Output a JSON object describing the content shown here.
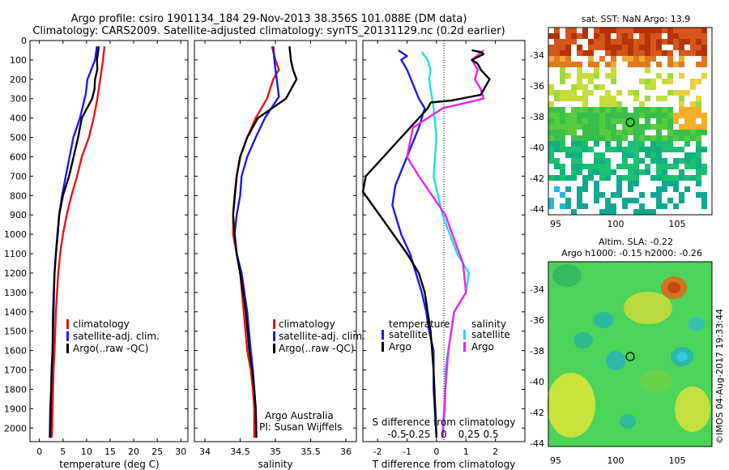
{
  "title_line1": "Argo profile: csiro 1901134_184 29-Nov-2013 38.356S 101.088E (DM data)",
  "title_line2": "Climatology: CARS2009. Satellite-adjusted climatology: synTS_20131129.nc (0.2d earlier)",
  "chart_data": [
    {
      "type": "line",
      "xlabel": "temperature (deg C)",
      "xlim": [
        -2,
        31.5
      ],
      "xticks": [
        0,
        5,
        10,
        15,
        20,
        25,
        30
      ],
      "ylim": [
        0,
        2070
      ],
      "yticks": [
        0,
        100,
        200,
        300,
        400,
        500,
        600,
        700,
        800,
        900,
        1000,
        1100,
        1200,
        1300,
        1400,
        1500,
        1600,
        1700,
        1800,
        1900,
        2000
      ],
      "legend": [
        "climatology",
        "satellite-adj. clim.",
        "Argo(..raw -QC)"
      ],
      "series": [
        {
          "name": "climatology",
          "color": "#ee1111",
          "x": [
            13.8,
            13.5,
            13.2,
            12.9,
            12.3,
            11.5,
            10.5,
            9.0,
            8.0,
            6.8,
            5.8,
            5.0,
            4.4,
            4.0,
            3.5,
            3.2,
            3.0,
            2.9,
            2.8,
            2.7,
            2.6
          ],
          "y": [
            30,
            100,
            150,
            200,
            300,
            400,
            500,
            600,
            700,
            800,
            900,
            1000,
            1100,
            1200,
            1400,
            1600,
            1700,
            1800,
            1900,
            2000,
            2050
          ]
        },
        {
          "name": "satellite-adj. clim.",
          "color": "#1a1aee",
          "x": [
            12.2,
            11.8,
            11.0,
            10.2,
            9.8,
            9.6,
            8.6,
            7.2,
            5.6,
            4.8,
            4.2,
            3.8,
            3.5,
            3.2,
            3.0,
            2.8,
            2.6,
            2.5,
            2.3,
            2.2
          ],
          "y": [
            30,
            100,
            150,
            200,
            280,
            300,
            400,
            500,
            700,
            800,
            900,
            1000,
            1100,
            1200,
            1400,
            1600,
            1700,
            1800,
            1900,
            2050
          ]
        },
        {
          "name": "Argo(..raw -QC)",
          "color": "#000000",
          "x": [
            12.6,
            12.2,
            12.3,
            11.8,
            11.7,
            11.2,
            9.0,
            8.2,
            6.3,
            5.0,
            4.2,
            3.9,
            3.5,
            3.2,
            2.9,
            2.8,
            2.6,
            2.5,
            2.4,
            2.3
          ],
          "y": [
            30,
            100,
            150,
            200,
            250,
            300,
            400,
            500,
            700,
            800,
            900,
            1000,
            1100,
            1200,
            1400,
            1600,
            1700,
            1800,
            1900,
            2050
          ]
        }
      ]
    },
    {
      "type": "line",
      "xlabel": "salinity",
      "xlim": [
        33.85,
        36.15
      ],
      "xticks": [
        34,
        34.5,
        35,
        35.5,
        36
      ],
      "ylim": [
        0,
        2070
      ],
      "legend": [
        "climatology",
        "satellite-adj. clim.",
        "Argo(..raw -QC)"
      ],
      "annotation": [
        "Argo Australia",
        "PI: Susan Wijffels"
      ],
      "series": [
        {
          "name": "climatology",
          "color": "#ee1111",
          "x": [
            34.95,
            35.0,
            35.05,
            34.97,
            34.88,
            34.72,
            34.6,
            34.5,
            34.45,
            34.42,
            34.4,
            34.4,
            34.45,
            34.5,
            34.55,
            34.6,
            34.65,
            34.68,
            34.7,
            34.7
          ],
          "y": [
            30,
            100,
            150,
            200,
            300,
            400,
            500,
            600,
            700,
            800,
            900,
            1000,
            1100,
            1200,
            1400,
            1600,
            1700,
            1800,
            1900,
            2050
          ]
        },
        {
          "name": "satellite-adj. clim.",
          "color": "#1a1aee",
          "x": [
            34.97,
            34.98,
            35.0,
            35.02,
            35.05,
            34.85,
            34.72,
            34.6,
            34.52,
            34.5,
            34.45,
            34.42,
            34.45,
            34.52,
            34.6,
            34.65,
            34.68,
            34.7,
            34.72,
            34.73
          ],
          "y": [
            30,
            80,
            150,
            200,
            290,
            400,
            500,
            600,
            700,
            800,
            900,
            1000,
            1100,
            1200,
            1400,
            1600,
            1700,
            1800,
            1900,
            2050
          ]
        },
        {
          "name": "Argo(..raw -QC)",
          "color": "#000000",
          "x": [
            35.2,
            35.22,
            35.25,
            35.3,
            35.15,
            34.95,
            34.75,
            34.6,
            34.5,
            34.45,
            34.4,
            34.42,
            34.45,
            34.5,
            34.58,
            34.63,
            34.67,
            34.7,
            34.72,
            34.73
          ],
          "y": [
            30,
            100,
            150,
            200,
            300,
            350,
            400,
            500,
            600,
            700,
            900,
            1000,
            1100,
            1200,
            1400,
            1600,
            1700,
            1800,
            1900,
            2050
          ]
        }
      ]
    },
    {
      "type": "line",
      "xlabel": "T difference from climatology",
      "xlim": [
        -2.5,
        3
      ],
      "xticks": [
        -2,
        -1,
        0,
        1,
        2
      ],
      "top_axis_label": "S difference from climatology",
      "top_ticks": [
        "-0.5",
        "-0.25",
        "0",
        "0.25",
        "0.5"
      ],
      "ylim": [
        0,
        2070
      ],
      "legend": {
        "temperature": [
          "satellite",
          "Argo"
        ],
        "salinity": [
          "satellite",
          "Argo"
        ]
      },
      "series": [
        {
          "name": "temperature satellite",
          "color": "#1a1aee",
          "x": [
            -1.3,
            -1.0,
            -1.2,
            -1.0,
            -0.6,
            -0.4,
            -0.6,
            -1.0,
            -1.4,
            -1.5,
            -1.2,
            -0.9,
            -0.7,
            -0.5,
            -0.35,
            -0.25,
            -0.1,
            -0.1,
            0.0
          ],
          "y": [
            50,
            80,
            100,
            150,
            300,
            350,
            450,
            600,
            750,
            850,
            1000,
            1100,
            1200,
            1300,
            1400,
            1500,
            1600,
            1800,
            2050
          ]
        },
        {
          "name": "temperature Argo",
          "color": "#000000",
          "x": [
            -0.2,
            -0.3,
            -0.6,
            -1.5,
            -2.4,
            -2.5,
            -1.7,
            -1.0,
            -0.6,
            -0.4,
            -0.3,
            -0.2,
            -0.1,
            0.0
          ],
          "y": [
            320,
            350,
            400,
            550,
            700,
            780,
            950,
            1100,
            1200,
            1300,
            1400,
            1500,
            1700,
            2050
          ]
        },
        {
          "name": "salinity satellite",
          "color": "#22dddd",
          "x": [
            -0.5,
            -0.3,
            -0.2,
            -0.25,
            -0.1,
            0.0,
            -0.1,
            0.2,
            0.7,
            1.1,
            1.0,
            0.6,
            0.4,
            0.3,
            0.3,
            0.2
          ],
          "y": [
            60,
            100,
            150,
            200,
            350,
            500,
            700,
            900,
            1100,
            1200,
            1300,
            1400,
            1600,
            1700,
            1900,
            2050
          ]
        },
        {
          "name": "salinity Argo",
          "color": "#ee22ee",
          "x": [
            1.6,
            1.2,
            1.4,
            1.3,
            1.5,
            1.6,
            0.2,
            -0.8,
            -1.0,
            -0.6,
            0.3,
            0.9,
            1.0,
            0.6,
            0.4,
            0.3,
            0.2
          ],
          "y": [
            50,
            100,
            150,
            200,
            250,
            300,
            350,
            450,
            600,
            700,
            900,
            1150,
            1300,
            1400,
            1600,
            1800,
            2050
          ]
        },
        {
          "name": "Argo upper (black)",
          "color": "#000000",
          "x": [
            1.2,
            1.5,
            1.6,
            1.2,
            1.4,
            1.5,
            1.8,
            1.5,
            0.5,
            -0.2
          ],
          "y": [
            50,
            60,
            70,
            100,
            120,
            150,
            200,
            280,
            310,
            320
          ]
        }
      ]
    }
  ],
  "map1": {
    "title": "sat. SST: NaN Argo: 13.9",
    "xticks": [
      "95",
      "100",
      "105"
    ],
    "yticks": [
      "-34",
      "-36",
      "-38",
      "-40",
      "-42",
      "-44"
    ]
  },
  "map2": {
    "title1": "Altim. SLA: -0.22",
    "title2": "Argo h1000: -0.15 h2000: -0.26",
    "xticks": [
      "95",
      "100",
      "105"
    ],
    "yticks": [
      "-34",
      "-36",
      "-38",
      "-40",
      "-42",
      "-44"
    ]
  },
  "legend1": [
    "climatology",
    "satellite-adj. clim.",
    "Argo(..raw -QC)"
  ],
  "legend3": {
    "temperature": "temperature",
    "salinity": "salinity",
    "satellite": "satellite",
    "argo": "Argo"
  },
  "credit": "Argo Australia",
  "pi": "PI: Susan Wijffels",
  "watermark": "©IMOS 04-Aug-2017 19:33:44",
  "colors": {
    "clim": "#ee1111",
    "sat": "#1a1aee",
    "argo": "#000000",
    "sal_sat": "#22dddd",
    "sal_argo": "#ee22ee"
  }
}
